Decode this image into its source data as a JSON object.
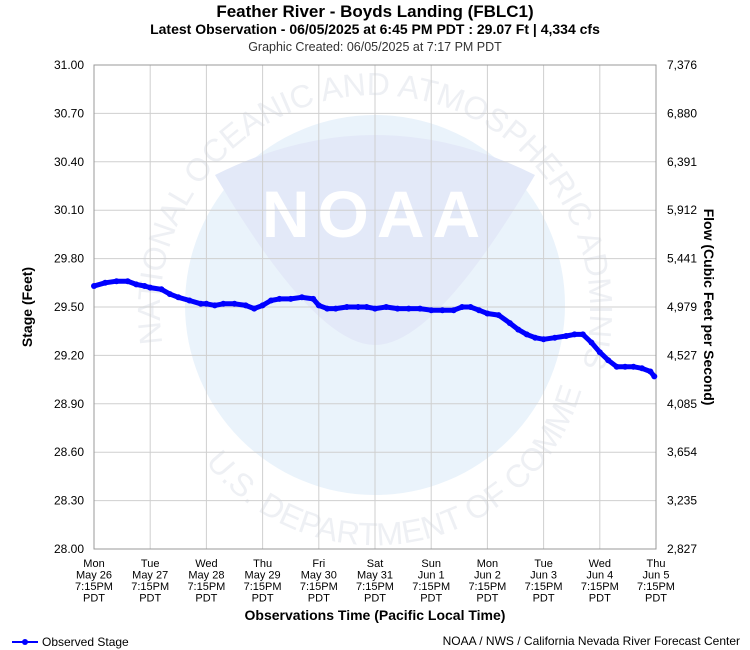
{
  "header": {
    "title": "Feather River - Boyds Landing (FBLC1)",
    "subtitle": "Latest Observation - 06/05/2025 at 6:45 PM PDT : 29.07 Ft | 4,334 cfs",
    "created": "Graphic Created: 06/05/2025 at 7:17 PM PDT"
  },
  "watermark": {
    "logo_text": "NOAA",
    "arc_top": "NATIONAL OCEANIC AND ATMOSPHERIC ADMINISTRATION",
    "arc_bottom": "U.S. DEPARTMENT OF COMMERCE"
  },
  "legend": {
    "label": "Observed Stage",
    "color": "#0000ff"
  },
  "footer": {
    "credit": "NOAA / NWS / California Nevada River Forecast Center"
  },
  "chart_data": {
    "type": "line",
    "title": "Feather River - Boyds Landing (FBLC1)",
    "xlabel": "Observations Time (Pacific Local Time)",
    "ylabel": "Stage (Feet)",
    "y2label": "Flow (Cubic Feet per Second)",
    "ylim": [
      28.0,
      31.0
    ],
    "xlim": [
      0,
      10
    ],
    "grid": true,
    "legend_position": "bottom-left",
    "y_ticks": [
      "31.00",
      "30.70",
      "30.40",
      "30.10",
      "29.80",
      "29.50",
      "29.20",
      "28.90",
      "28.60",
      "28.30",
      "28.00"
    ],
    "y2_ticks": [
      "7,376",
      "6,880",
      "6,391",
      "5,912",
      "5,441",
      "4,979",
      "4,527",
      "4,085",
      "3,654",
      "3,235",
      "2,827"
    ],
    "x_ticks": [
      [
        "Mon",
        "May 26",
        "7:15PM",
        "PDT"
      ],
      [
        "Tue",
        "May 27",
        "7:15PM",
        "PDT"
      ],
      [
        "Wed",
        "May 28",
        "7:15PM",
        "PDT"
      ],
      [
        "Thu",
        "May 29",
        "7:15PM",
        "PDT"
      ],
      [
        "Fri",
        "May 30",
        "7:15PM",
        "PDT"
      ],
      [
        "Sat",
        "May 31",
        "7:15PM",
        "PDT"
      ],
      [
        "Sun",
        "Jun 1",
        "7:15PM",
        "PDT"
      ],
      [
        "Mon",
        "Jun 2",
        "7:15PM",
        "PDT"
      ],
      [
        "Tue",
        "Jun 3",
        "7:15PM",
        "PDT"
      ],
      [
        "Wed",
        "Jun 4",
        "7:15PM",
        "PDT"
      ],
      [
        "Thu",
        "Jun 5",
        "7:15PM",
        "PDT"
      ]
    ],
    "series": [
      {
        "name": "Observed Stage",
        "color": "#0000ff",
        "x": [
          0.0,
          0.2,
          0.4,
          0.6,
          0.75,
          0.9,
          1.0,
          1.2,
          1.35,
          1.5,
          1.7,
          1.9,
          2.0,
          2.15,
          2.3,
          2.5,
          2.7,
          2.85,
          3.0,
          3.15,
          3.3,
          3.5,
          3.7,
          3.9,
          4.0,
          4.15,
          4.3,
          4.5,
          4.7,
          4.85,
          5.0,
          5.2,
          5.4,
          5.6,
          5.8,
          6.0,
          6.2,
          6.4,
          6.55,
          6.7,
          6.85,
          7.0,
          7.2,
          7.4,
          7.55,
          7.7,
          7.85,
          8.0,
          8.2,
          8.4,
          8.55,
          8.7,
          8.85,
          9.0,
          9.15,
          9.3,
          9.45,
          9.6,
          9.75,
          9.9,
          9.97
        ],
        "y": [
          29.63,
          29.65,
          29.66,
          29.66,
          29.64,
          29.63,
          29.62,
          29.61,
          29.58,
          29.56,
          29.54,
          29.52,
          29.52,
          29.51,
          29.52,
          29.52,
          29.51,
          29.49,
          29.51,
          29.54,
          29.55,
          29.55,
          29.56,
          29.55,
          29.51,
          29.49,
          29.49,
          29.5,
          29.5,
          29.5,
          29.49,
          29.5,
          29.49,
          29.49,
          29.49,
          29.48,
          29.48,
          29.48,
          29.5,
          29.5,
          29.48,
          29.46,
          29.45,
          29.4,
          29.36,
          29.33,
          29.31,
          29.3,
          29.31,
          29.32,
          29.33,
          29.33,
          29.28,
          29.22,
          29.17,
          29.13,
          29.13,
          29.13,
          29.12,
          29.1,
          29.07
        ]
      }
    ]
  }
}
